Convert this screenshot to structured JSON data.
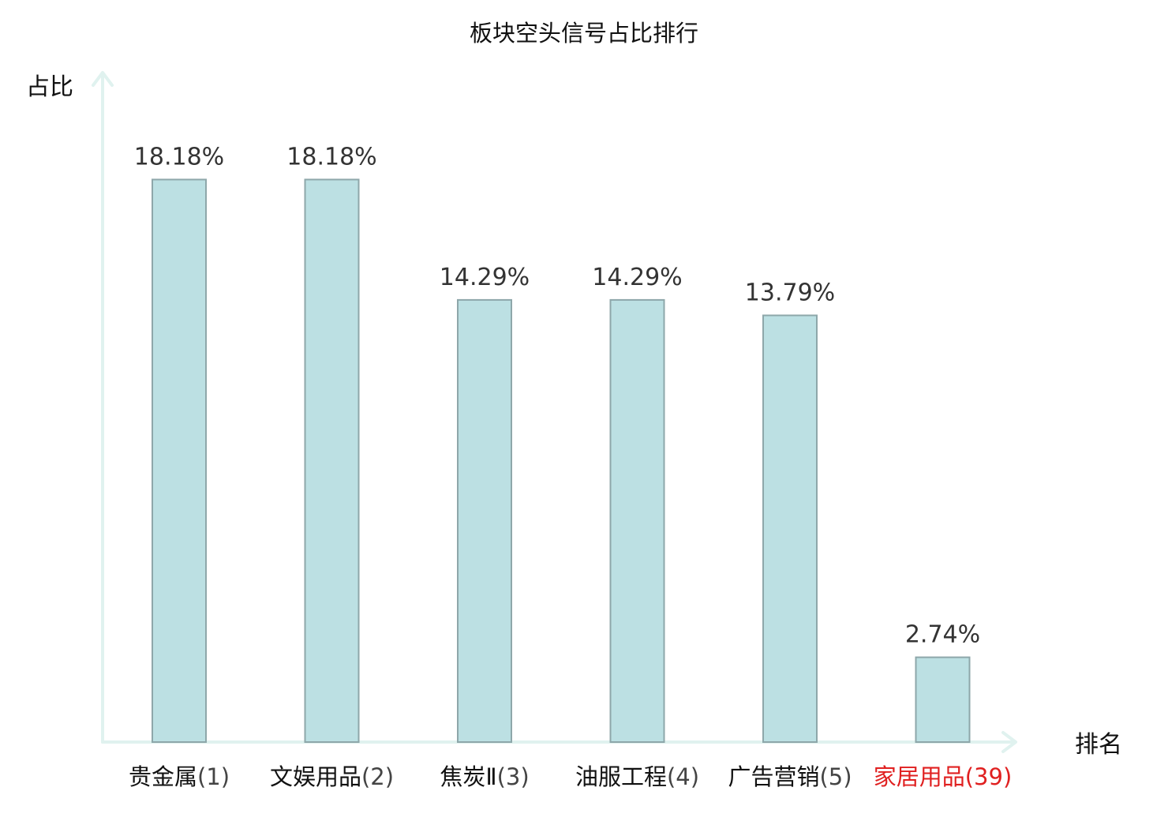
{
  "chart_data": {
    "type": "bar",
    "title": "板块空头信号占比排行",
    "ylabel": "占比",
    "xlabel": "排名",
    "categories": [
      {
        "name": "贵金属",
        "rank": "(1)",
        "highlight": false
      },
      {
        "name": "文娱用品",
        "rank": "(2)",
        "highlight": false
      },
      {
        "name": "焦炭Ⅱ",
        "rank": "(3)",
        "highlight": false
      },
      {
        "name": "油服工程",
        "rank": "(4)",
        "highlight": false
      },
      {
        "name": "广告营销",
        "rank": "(5)",
        "highlight": false
      },
      {
        "name": "家居用品",
        "rank": "(39)",
        "highlight": true
      }
    ],
    "values": [
      18.18,
      18.18,
      14.29,
      14.29,
      13.79,
      2.74
    ],
    "value_labels": [
      "18.18%",
      "18.18%",
      "14.29%",
      "14.29%",
      "13.79%",
      "2.74%"
    ],
    "ylim": [
      0,
      20.87
    ],
    "grid": false,
    "legend": "none",
    "colors": {
      "bar_fill": "#bce0e3",
      "bar_stroke": "#8ea7aa",
      "axis": "#e0f2ef",
      "highlight_text": "#e02020",
      "text": "#111111",
      "value_text": "#333333"
    }
  }
}
